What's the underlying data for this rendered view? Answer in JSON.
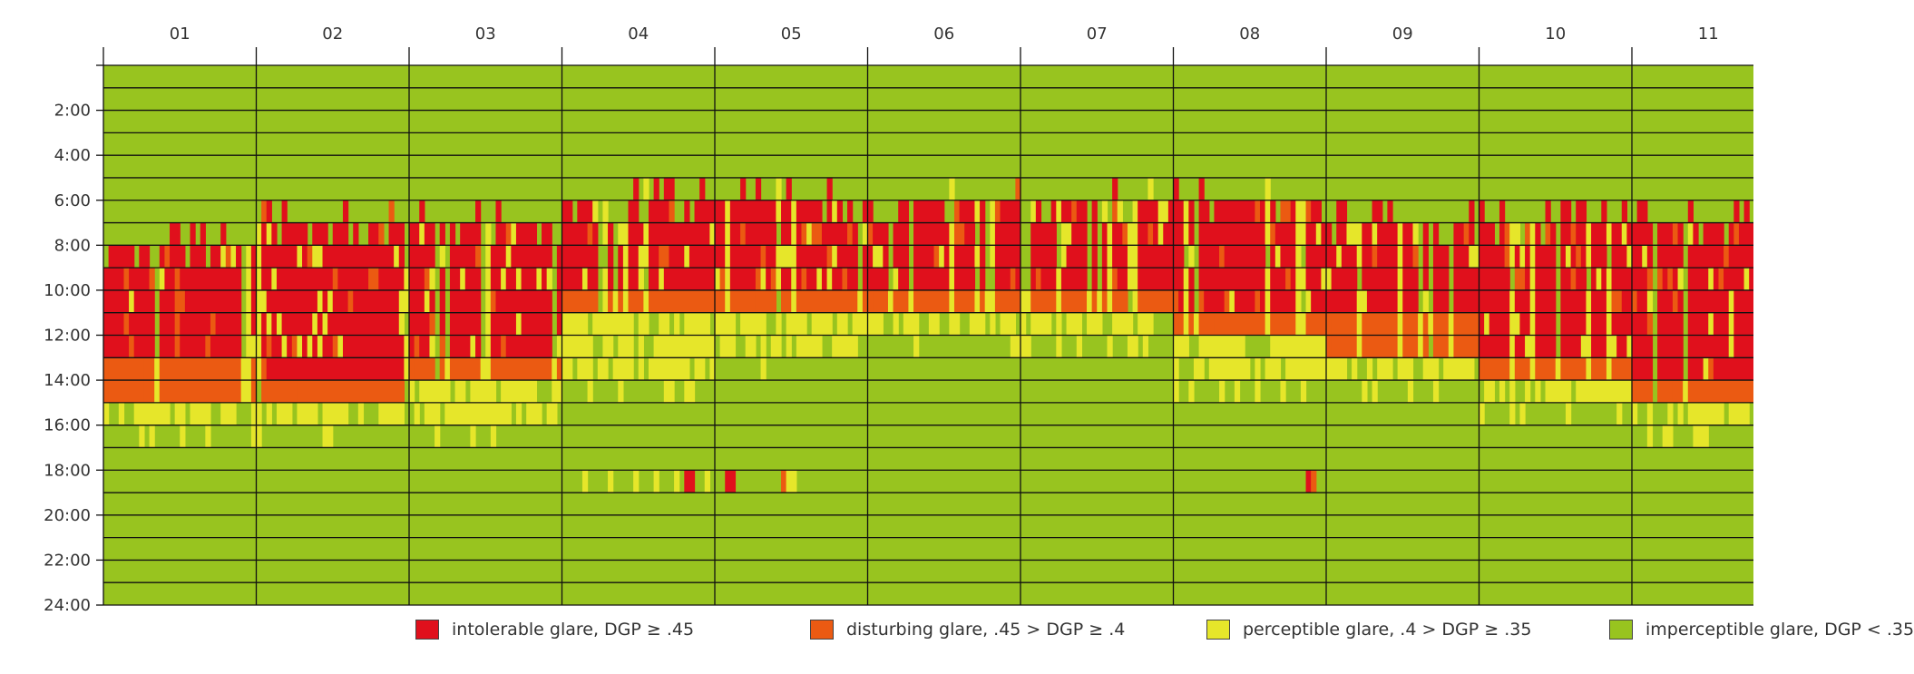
{
  "chart_data": {
    "type": "heatmap",
    "title": "",
    "xlabel": "",
    "ylabel": "",
    "x_categories": [
      "01",
      "02",
      "03",
      "04",
      "05",
      "06",
      "07",
      "08",
      "09",
      "10",
      "11"
    ],
    "y_ticks": [
      "2:00",
      "4:00",
      "6:00",
      "8:00",
      "10:00",
      "12:00",
      "14:00",
      "16:00",
      "18:00",
      "20:00",
      "22:00",
      "24:00"
    ],
    "ylim": [
      0,
      24
    ],
    "days_per_month": 30,
    "levels": [
      {
        "key": "intolerable",
        "label": "intolerable glare, DGP ≥ .45",
        "color": "#e0101c"
      },
      {
        "key": "disturbing",
        "label": "disturbing glare, .45 > DGP ≥ .4",
        "color": "#eb5a12"
      },
      {
        "key": "perceptible",
        "label": "perceptible glare, .4 > DGP ≥ .35",
        "color": "#e6e62a"
      },
      {
        "key": "imperceptible",
        "label": "imperceptible glare, DGP < .35",
        "color": "#98c41f"
      }
    ],
    "monthly_profile": [
      {
        "month": "01",
        "red": [
          8,
          13
        ],
        "orange": [
          13,
          15
        ],
        "yellow": [
          15,
          16
        ]
      },
      {
        "month": "02",
        "red": [
          7,
          14
        ],
        "orange": [
          14,
          15
        ],
        "yellow": [
          15,
          16
        ]
      },
      {
        "month": "03",
        "red": [
          7,
          13
        ],
        "orange": [
          13,
          14
        ],
        "yellow": [
          14,
          16
        ]
      },
      {
        "month": "04",
        "red": [
          6,
          10
        ],
        "orange": [
          10,
          11
        ],
        "yellow": [
          11,
          14
        ]
      },
      {
        "month": "05",
        "red": [
          6,
          10
        ],
        "orange": [
          10,
          11
        ],
        "yellow": [
          11,
          13
        ]
      },
      {
        "month": "06",
        "red": [
          6,
          10
        ],
        "orange": [
          10,
          11
        ],
        "yellow": [
          11,
          12
        ]
      },
      {
        "month": "07",
        "red": [
          6,
          10
        ],
        "orange": [
          10,
          11
        ],
        "yellow": [
          11,
          12
        ]
      },
      {
        "month": "08",
        "red": [
          6,
          11
        ],
        "orange": [
          11,
          12
        ],
        "yellow": [
          12,
          14
        ]
      },
      {
        "month": "09",
        "red": [
          7,
          11
        ],
        "orange": [
          11,
          13
        ],
        "yellow": [
          13,
          14
        ]
      },
      {
        "month": "10",
        "red": [
          7,
          13
        ],
        "orange": [
          13,
          14
        ],
        "yellow": [
          14,
          15
        ]
      },
      {
        "month": "11",
        "red": [
          7,
          14
        ],
        "orange": [
          14,
          15
        ],
        "yellow": [
          15,
          16
        ]
      }
    ],
    "legend_position": "bottom",
    "grid": true
  }
}
